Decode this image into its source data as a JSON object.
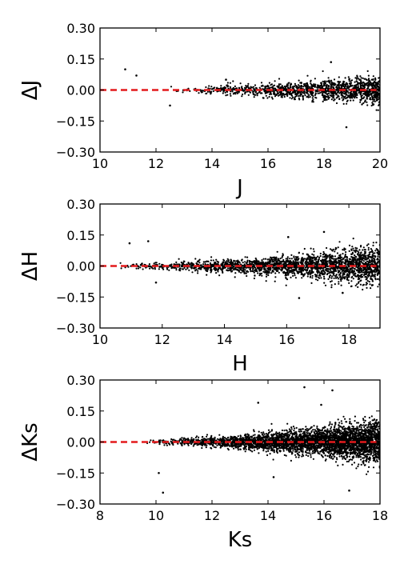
{
  "chart_data": [
    {
      "type": "scatter",
      "xlabel": "J",
      "ylabel": "ΔJ",
      "xlim": [
        10,
        20
      ],
      "ylim": [
        -0.3,
        0.3
      ],
      "xticks": [
        "10",
        "12",
        "14",
        "16",
        "18",
        "20"
      ],
      "yticks": [
        "−0.30",
        "−0.15",
        "0.00",
        "0.15",
        "0.30"
      ],
      "reference_line": {
        "y": 0.0,
        "style": "dashed",
        "color": "#e31a1c"
      },
      "point_color": "#000000",
      "scatter_envelope": {
        "x_start": 12.5,
        "spread_start": 0.008,
        "spread_end": 0.035,
        "density": "increasing"
      },
      "outliers": [
        {
          "x": 10.9,
          "y": 0.1
        },
        {
          "x": 11.3,
          "y": 0.07
        },
        {
          "x": 12.5,
          "y": -0.075
        },
        {
          "x": 18.25,
          "y": 0.135
        },
        {
          "x": 18.8,
          "y": -0.18
        },
        {
          "x": 14.5,
          "y": 0.05
        }
      ]
    },
    {
      "type": "scatter",
      "xlabel": "H",
      "ylabel": "ΔH",
      "xlim": [
        10,
        19
      ],
      "ylim": [
        -0.3,
        0.3
      ],
      "xticks": [
        "10",
        "12",
        "14",
        "16",
        "18"
      ],
      "yticks": [
        "−0.30",
        "−0.15",
        "0.00",
        "0.15",
        "0.30"
      ],
      "reference_line": {
        "y": 0.0,
        "style": "dashed",
        "color": "#e31a1c"
      },
      "point_color": "#000000",
      "scatter_envelope": {
        "x_start": 10.3,
        "spread_start": 0.006,
        "spread_end": 0.045,
        "density": "increasing"
      },
      "outliers": [
        {
          "x": 10.95,
          "y": 0.11
        },
        {
          "x": 11.55,
          "y": 0.12
        },
        {
          "x": 11.8,
          "y": -0.08
        },
        {
          "x": 16.05,
          "y": 0.14
        },
        {
          "x": 16.4,
          "y": -0.155
        },
        {
          "x": 17.2,
          "y": 0.165
        },
        {
          "x": 17.8,
          "y": -0.13
        }
      ]
    },
    {
      "type": "scatter",
      "xlabel": "Ks",
      "ylabel": "ΔKs",
      "xlim": [
        8,
        18
      ],
      "ylim": [
        -0.3,
        0.3
      ],
      "xticks": [
        "8",
        "10",
        "12",
        "14",
        "16",
        "18"
      ],
      "yticks": [
        "−0.30",
        "−0.15",
        "0.00",
        "0.15",
        "0.30"
      ],
      "reference_line": {
        "y": 0.0,
        "style": "dashed",
        "color": "#e31a1c"
      },
      "point_color": "#000000",
      "scatter_envelope": {
        "x_start": 9.5,
        "spread_start": 0.006,
        "spread_end": 0.05,
        "density": "increasing"
      },
      "outliers": [
        {
          "x": 10.1,
          "y": -0.15
        },
        {
          "x": 10.25,
          "y": -0.245
        },
        {
          "x": 13.65,
          "y": 0.19
        },
        {
          "x": 15.3,
          "y": 0.265
        },
        {
          "x": 16.3,
          "y": 0.25
        },
        {
          "x": 15.9,
          "y": 0.18
        },
        {
          "x": 16.9,
          "y": -0.235
        },
        {
          "x": 14.2,
          "y": -0.17
        }
      ]
    }
  ]
}
